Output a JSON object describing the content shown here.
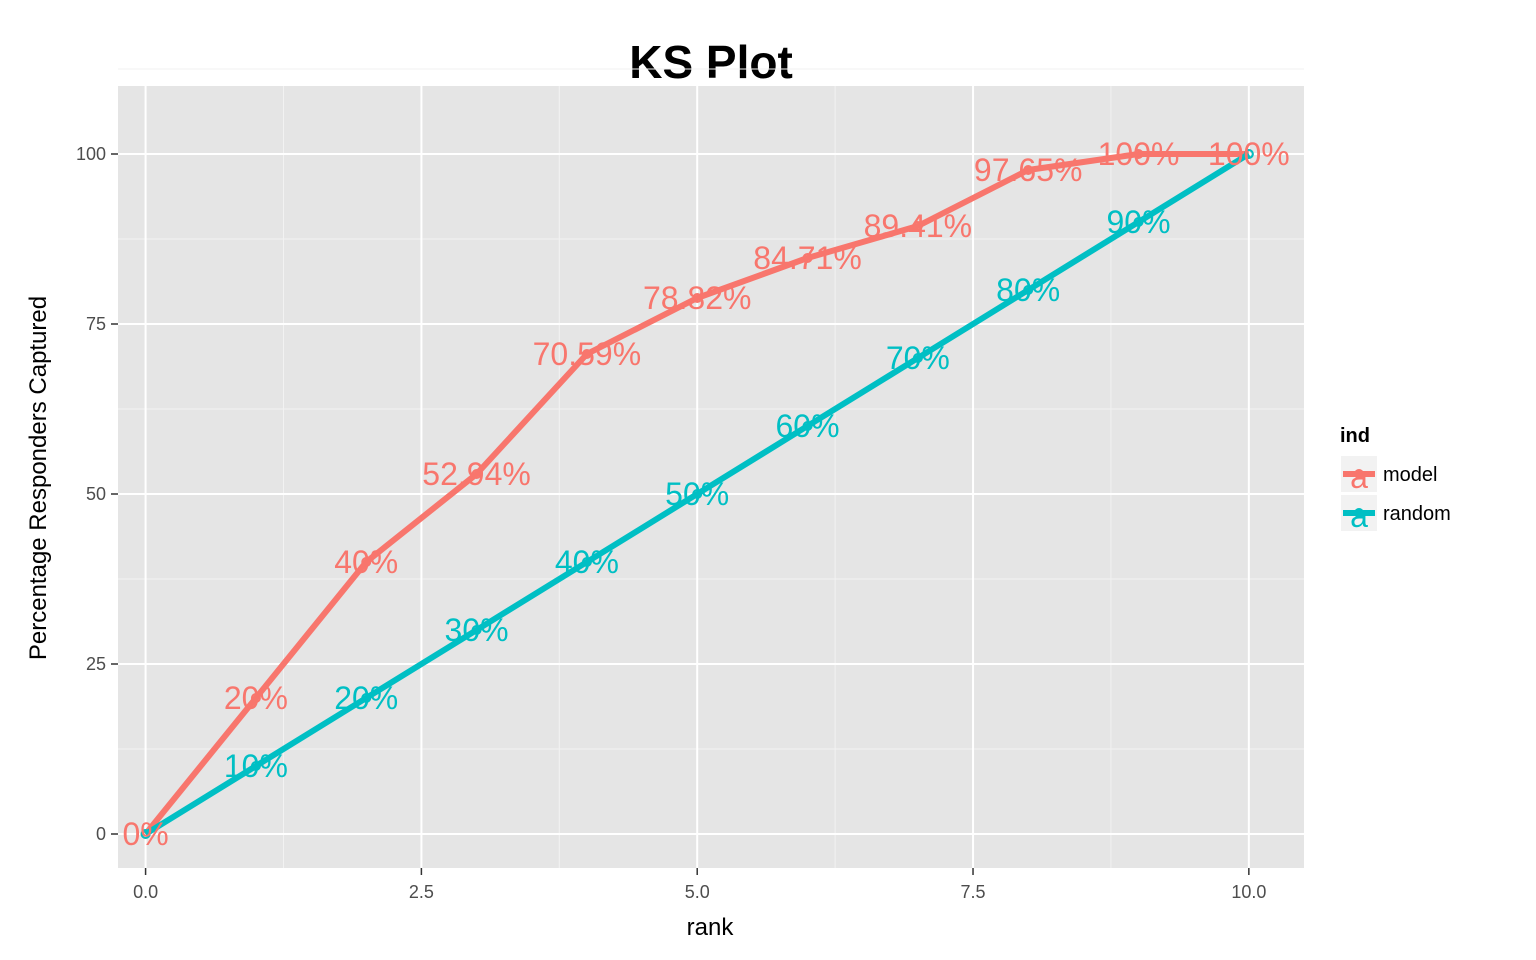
{
  "chart_data": {
    "type": "line",
    "title": "KS Plot",
    "xlabel": "rank",
    "ylabel": "Percentage Responders Captured",
    "xlim": [
      -0.25,
      10.5
    ],
    "ylim": [
      -5,
      110
    ],
    "x_ticks": [
      0,
      2.5,
      5,
      7.5,
      10
    ],
    "x_tick_labels": [
      "0.0",
      "2.5",
      "5.0",
      "7.5",
      "10.0"
    ],
    "y_ticks": [
      0,
      25,
      50,
      75,
      100
    ],
    "y_tick_labels": [
      "0",
      "25",
      "50",
      "75",
      "100"
    ],
    "grid": true,
    "legend": {
      "title": "ind",
      "placement": "right"
    },
    "series": [
      {
        "name": "model",
        "color": "#F8766D",
        "x": [
          0,
          1,
          2,
          3,
          4,
          5,
          6,
          7,
          8,
          9,
          10
        ],
        "values": [
          0,
          20,
          40,
          52.94,
          70.59,
          78.82,
          84.71,
          89.41,
          97.65,
          100,
          100
        ],
        "labels": [
          "0%",
          "20%",
          "40%",
          "52.94%",
          "70.59%",
          "78.82%",
          "84.71%",
          "89.41%",
          "97.65%",
          "100%",
          "100%"
        ]
      },
      {
        "name": "random",
        "color": "#00BFC4",
        "x": [
          0,
          1,
          2,
          3,
          4,
          5,
          6,
          7,
          8,
          9,
          10
        ],
        "values": [
          0,
          10,
          20,
          30,
          40,
          50,
          60,
          70,
          80,
          90,
          100
        ],
        "labels": [
          "",
          "10%",
          "20%",
          "30%",
          "40%",
          "50%",
          "60%",
          "70%",
          "80%",
          "90%",
          ""
        ]
      }
    ]
  }
}
